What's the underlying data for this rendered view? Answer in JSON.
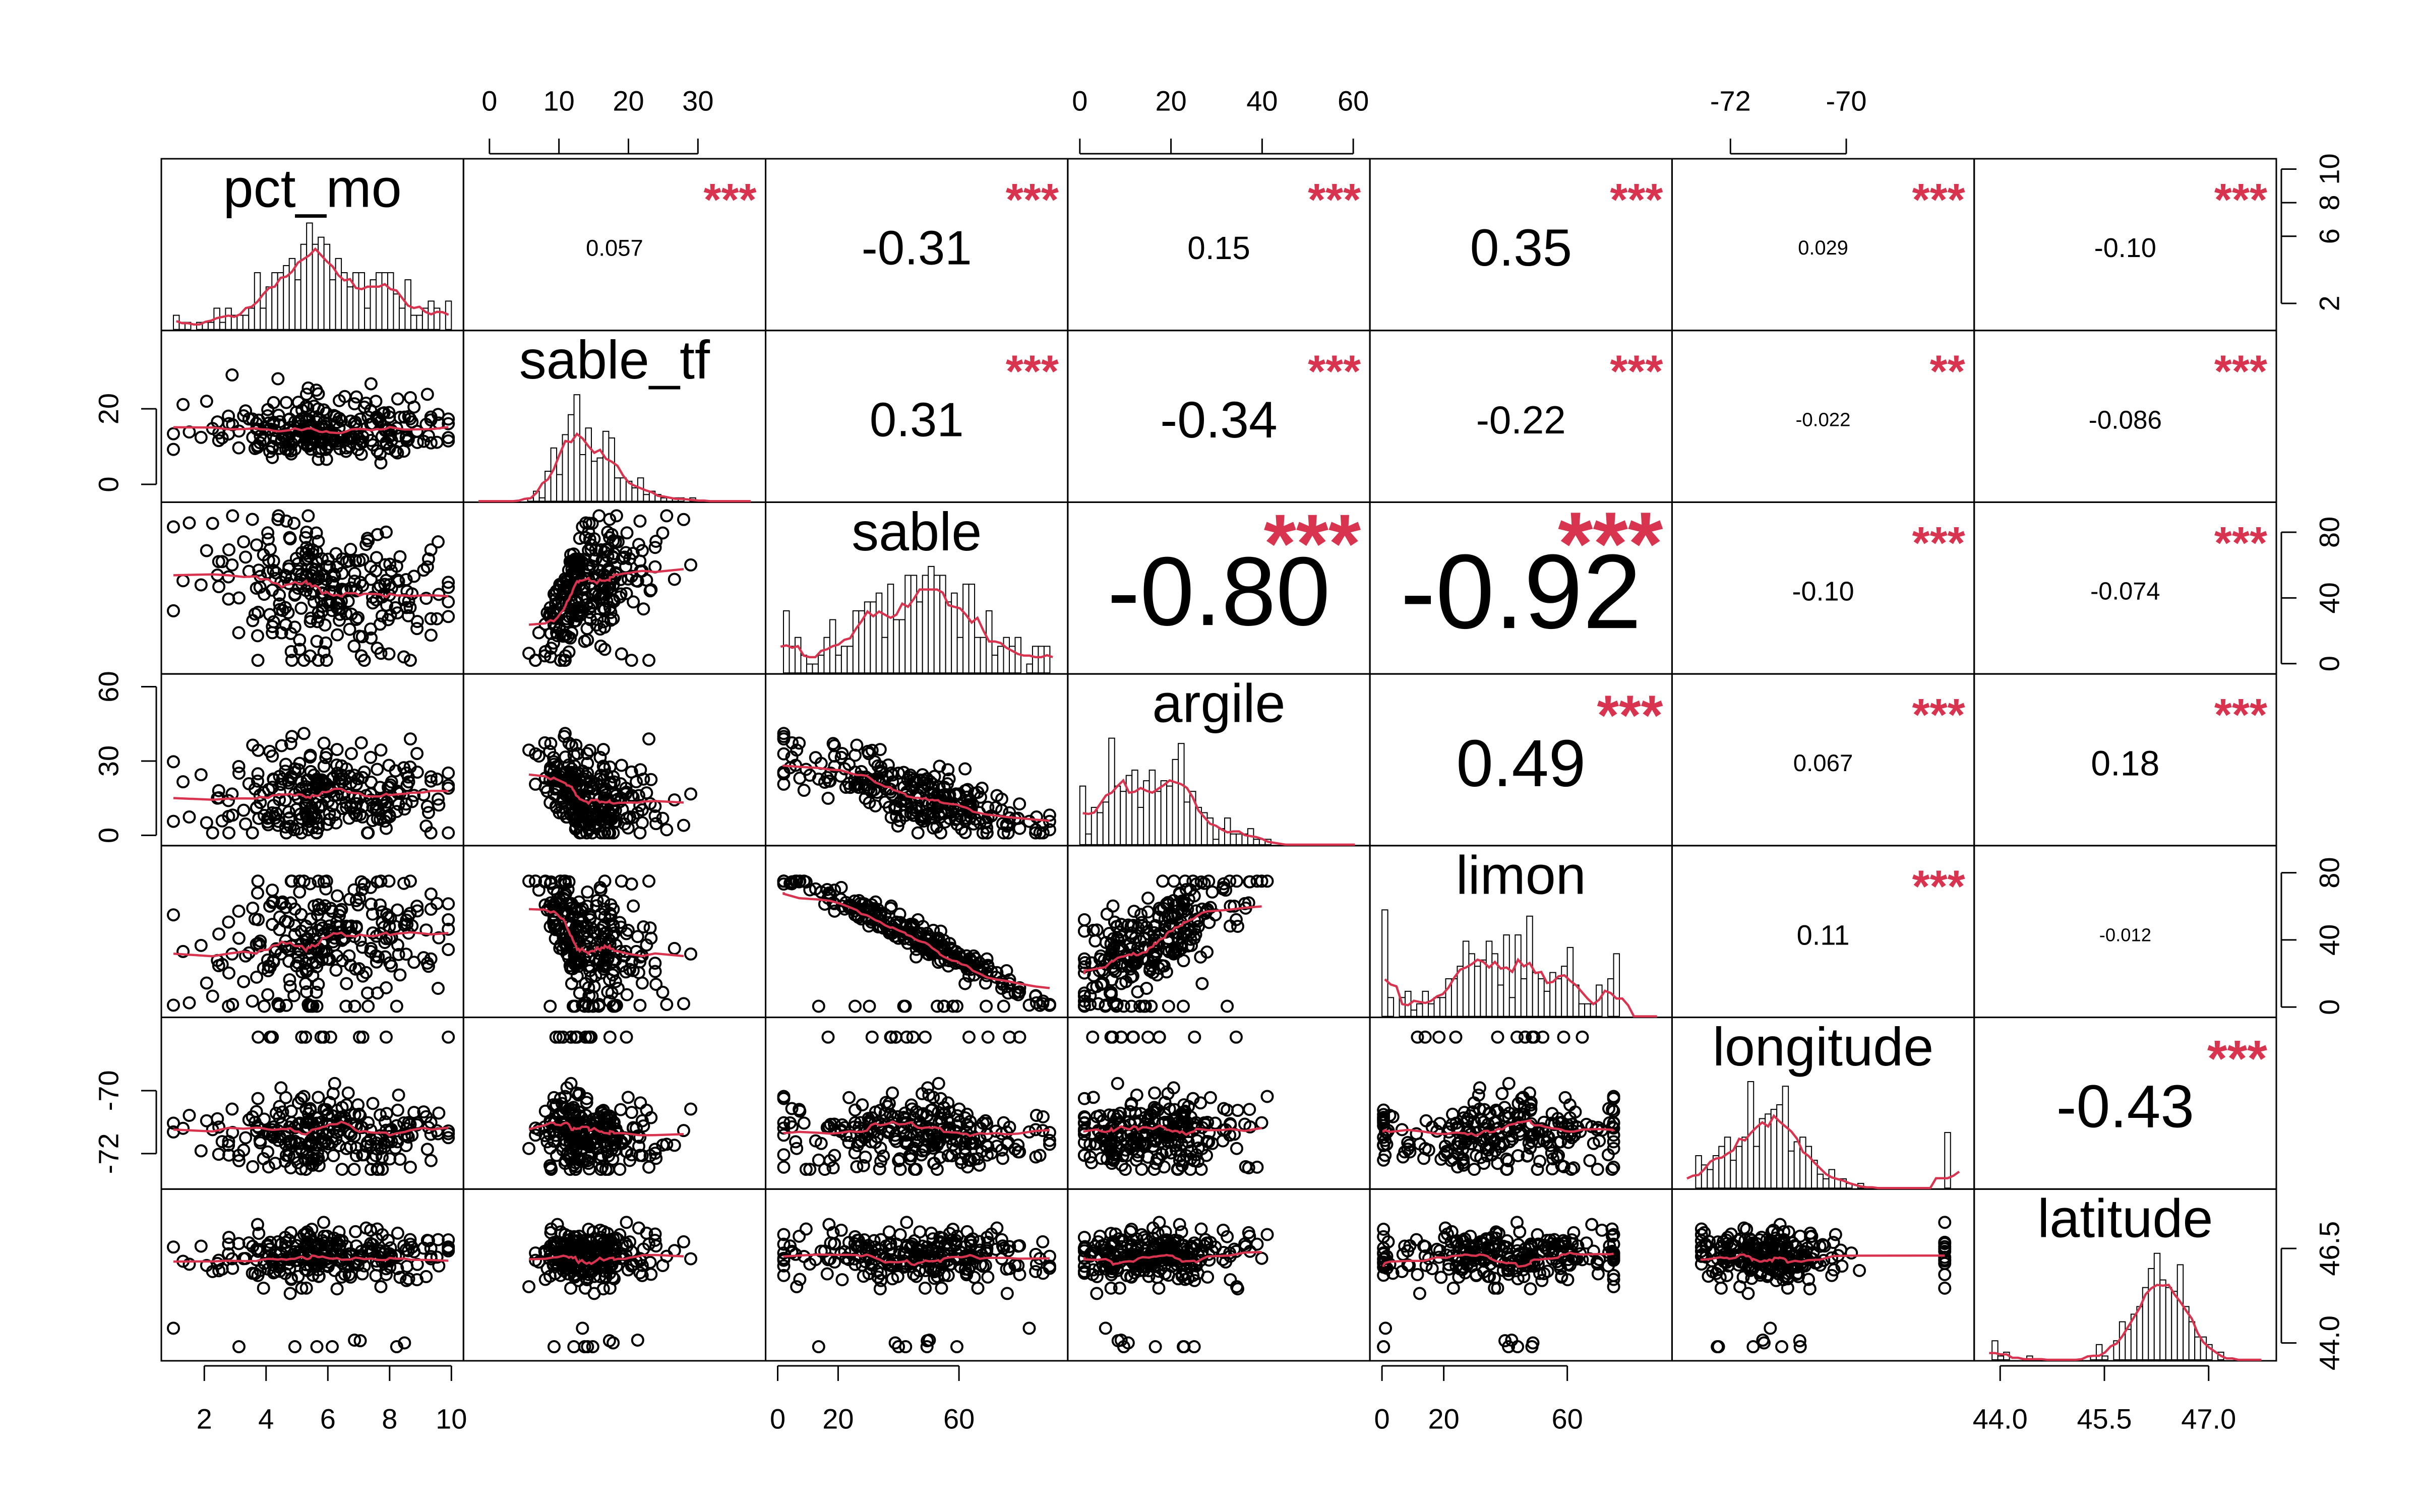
{
  "chart_data": {
    "type": "scatter-matrix",
    "variables": [
      {
        "name": "pct_mo",
        "range": [
          1,
          10
        ],
        "ticks": [
          2,
          4,
          6,
          8,
          10
        ]
      },
      {
        "name": "sable_tf",
        "range": [
          -2,
          38
        ],
        "ticks": [
          0,
          10,
          20,
          30
        ]
      },
      {
        "name": "sable",
        "range": [
          0,
          92
        ],
        "ticks": [
          0,
          20,
          40,
          60,
          80
        ]
      },
      {
        "name": "argile",
        "range": [
          0,
          61
        ],
        "ticks": [
          0,
          20,
          40,
          60
        ]
      },
      {
        "name": "limon",
        "range": [
          0,
          90
        ],
        "ticks": [
          0,
          20,
          40,
          60,
          80
        ]
      },
      {
        "name": "longitude",
        "range": [
          -72.8,
          -68.0
        ],
        "ticks": [
          -72,
          -70
        ]
      },
      {
        "name": "latitude",
        "range": [
          43.8,
          47.8
        ],
        "ticks": [
          44.0,
          45.5,
          47.0
        ]
      }
    ],
    "tick_labels": {
      "top": [
        {
          "var": 1,
          "labels": [
            "0",
            "10",
            "20",
            "30"
          ]
        },
        {
          "var": 3,
          "labels": [
            "0",
            "20",
            "40",
            "60"
          ]
        },
        {
          "var": 5,
          "labels": [
            "-72",
            "-70"
          ]
        }
      ],
      "bottom": [
        {
          "var": 0,
          "labels": [
            "2",
            "4",
            "6",
            "8",
            "10"
          ]
        },
        {
          "var": 2,
          "labels": [
            "0",
            "20",
            "60"
          ]
        },
        {
          "var": 4,
          "labels": [
            "0",
            "20",
            "60"
          ]
        },
        {
          "var": 6,
          "labels": [
            "44.0",
            "45.5",
            "47.0"
          ]
        }
      ],
      "left": [
        {
          "var": 1,
          "labels": [
            "0",
            "20"
          ]
        },
        {
          "var": 3,
          "labels": [
            "0",
            "30",
            "60"
          ]
        },
        {
          "var": 5,
          "labels": [
            "-72",
            "-70"
          ]
        }
      ],
      "right": [
        {
          "var": 0,
          "labels": [
            "2",
            "6",
            "8",
            "10"
          ]
        },
        {
          "var": 2,
          "labels": [
            "0",
            "40",
            "80"
          ]
        },
        {
          "var": 4,
          "labels": [
            "0",
            "40",
            "80"
          ]
        },
        {
          "var": 6,
          "labels": [
            "44.0",
            "46.5"
          ]
        }
      ]
    },
    "right_axis_ticks": [
      {
        "var": 0,
        "range": [
          0,
          10
        ],
        "ticks": [
          2,
          6,
          8,
          10
        ]
      },
      {
        "var": 6,
        "range": [
          43.8,
          47.2
        ],
        "ticks": [
          44.0,
          46.5
        ]
      }
    ],
    "correlations": [
      {
        "row": 0,
        "col": 1,
        "r": "0.057",
        "stars": "***"
      },
      {
        "row": 0,
        "col": 2,
        "r": "-0.31",
        "stars": "***"
      },
      {
        "row": 0,
        "col": 3,
        "r": "0.15",
        "stars": "***"
      },
      {
        "row": 0,
        "col": 4,
        "r": "0.35",
        "stars": "***"
      },
      {
        "row": 0,
        "col": 5,
        "r": "0.029",
        "stars": "***"
      },
      {
        "row": 0,
        "col": 6,
        "r": "-0.10",
        "stars": "***"
      },
      {
        "row": 1,
        "col": 2,
        "r": "0.31",
        "stars": "***"
      },
      {
        "row": 1,
        "col": 3,
        "r": "-0.34",
        "stars": "***"
      },
      {
        "row": 1,
        "col": 4,
        "r": "-0.22",
        "stars": "***"
      },
      {
        "row": 1,
        "col": 5,
        "r": "-0.022",
        "stars": "**"
      },
      {
        "row": 1,
        "col": 6,
        "r": "-0.086",
        "stars": "***"
      },
      {
        "row": 2,
        "col": 3,
        "r": "-0.80",
        "stars": "***"
      },
      {
        "row": 2,
        "col": 4,
        "r": "-0.92",
        "stars": "***"
      },
      {
        "row": 2,
        "col": 5,
        "r": "-0.10",
        "stars": "***"
      },
      {
        "row": 2,
        "col": 6,
        "r": "-0.074",
        "stars": "***"
      },
      {
        "row": 3,
        "col": 4,
        "r": "0.49",
        "stars": "***"
      },
      {
        "row": 3,
        "col": 5,
        "r": "0.067",
        "stars": "***"
      },
      {
        "row": 3,
        "col": 6,
        "r": "0.18",
        "stars": "***"
      },
      {
        "row": 4,
        "col": 5,
        "r": "0.11",
        "stars": "***"
      },
      {
        "row": 4,
        "col": 6,
        "r": "-0.012",
        "stars": ""
      },
      {
        "row": 5,
        "col": 6,
        "r": "-0.43",
        "stars": "***"
      }
    ],
    "colors": {
      "smooth": "#d8344f",
      "stars": "#d8344f",
      "points": "#000000"
    }
  }
}
